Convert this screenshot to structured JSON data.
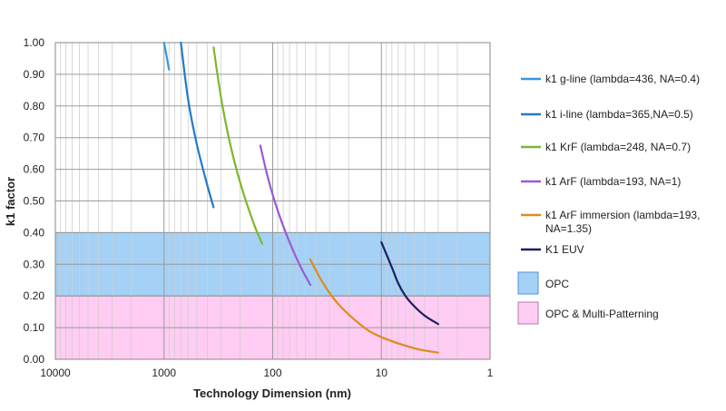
{
  "chart_data": {
    "type": "line",
    "title": "",
    "xlabel": "Technology Dimension (nm)",
    "ylabel": "k1 factor",
    "x_scale": "log",
    "x_reversed": true,
    "xlim": [
      10000,
      1
    ],
    "ylim": [
      0,
      1
    ],
    "x_ticks": [
      10000,
      1000,
      100,
      10,
      1
    ],
    "x_tick_labels": [
      "10000",
      "1000",
      "100",
      "10",
      "1"
    ],
    "y_ticks": [
      0,
      0.1,
      0.2,
      0.3,
      0.4,
      0.5,
      0.6,
      0.7,
      0.8,
      0.9,
      1.0
    ],
    "y_tick_labels": [
      "0.00",
      "0.10",
      "0.20",
      "0.30",
      "0.40",
      "0.50",
      "0.60",
      "0.70",
      "0.80",
      "0.90",
      "1.00"
    ],
    "grid": true,
    "legend_position": "right",
    "bands": [
      {
        "name": "OPC",
        "y_from": 0.2,
        "y_to": 0.4,
        "color": "#a4d1f5",
        "edge": "#4f93d8"
      },
      {
        "name": "OPC & Multi-Patterning",
        "y_from": 0,
        "y_to": 0.2,
        "color": "#ffccf3",
        "edge": "#b37bb0"
      }
    ],
    "series": [
      {
        "name": "k1 g-line (lambda=436, NA=0.4)",
        "color": "#3a95dc",
        "x": [
          1000,
          950,
          900
        ],
        "y": [
          1.0,
          0.96,
          0.915
        ]
      },
      {
        "name": "k1 i-line (lambda=365,NA=0.5)",
        "color": "#2479c8",
        "x": [
          700,
          600,
          500,
          400,
          350
        ],
        "y": [
          1.0,
          0.82,
          0.68,
          0.55,
          0.48
        ]
      },
      {
        "name": "k1 KrF (lambda=248, NA=0.7)",
        "color": "#7db72f",
        "x": [
          350,
          300,
          250,
          200,
          150,
          125
        ],
        "y": [
          0.985,
          0.83,
          0.69,
          0.56,
          0.43,
          0.365
        ]
      },
      {
        "name": "k1 ArF (lambda=193, NA=1)",
        "color": "#9a5ad2",
        "x": [
          130,
          110,
          90,
          70,
          55,
          45
        ],
        "y": [
          0.675,
          0.57,
          0.47,
          0.37,
          0.29,
          0.235
        ]
      },
      {
        "name": "k1 ArF immersion (lambda=193, NA=1.35)",
        "color": "#dd8c1e",
        "x": [
          45,
          35,
          25,
          15,
          10,
          5,
          3
        ],
        "y": [
          0.315,
          0.245,
          0.175,
          0.105,
          0.07,
          0.035,
          0.021
        ]
      },
      {
        "name": "K1 EUV",
        "color": "#1b1f63",
        "x": [
          10,
          8,
          7,
          6,
          5,
          4,
          3
        ],
        "y": [
          0.37,
          0.29,
          0.24,
          0.2,
          0.168,
          0.138,
          0.111
        ]
      }
    ]
  }
}
